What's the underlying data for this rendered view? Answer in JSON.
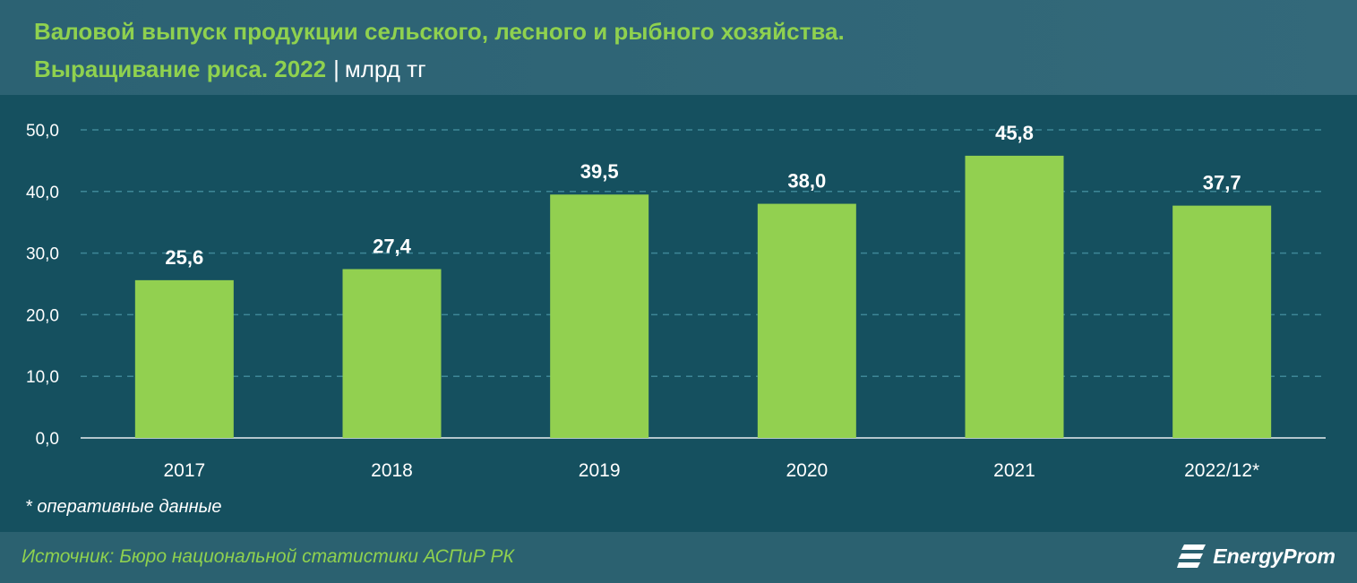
{
  "header": {
    "title_line1": "Валовой выпуск продукции сельского, лесного и рыбного хозяйства.",
    "title_line2": "Выращивание риса. 2022",
    "separator": "|",
    "unit": "млрд тг"
  },
  "chart_data": {
    "type": "bar",
    "title": "Валовой выпуск продукции сельского, лесного и рыбного хозяйства. Выращивание риса. 2022",
    "ylabel": "млрд тг",
    "xlabel": "",
    "categories": [
      "2017",
      "2018",
      "2019",
      "2020",
      "2021",
      "2022/12*"
    ],
    "values": [
      25.6,
      27.4,
      39.5,
      38.0,
      45.8,
      37.7
    ],
    "data_labels": [
      "25,6",
      "27,4",
      "39,5",
      "38,0",
      "45,8",
      "37,7"
    ],
    "yticks": [
      0,
      10,
      20,
      30,
      40,
      50
    ],
    "ytick_labels": [
      "0,0",
      "10,0",
      "20,0",
      "30,0",
      "40,0",
      "50,0"
    ],
    "ylim": [
      0,
      50
    ],
    "grid": true,
    "legend": "none"
  },
  "footnote": "* оперативные данные",
  "footer": {
    "source": "Источник: Бюро национальной статистики АСПиР РК",
    "logo_text": "EnergyProm"
  },
  "colors": {
    "bar": "#92d050",
    "background": "#15505f",
    "header_bg": "#2f6576",
    "title": "#8fd14f",
    "text": "#ffffff",
    "grid": "#3e8797"
  },
  "icons": {
    "logo": "energyprom-logo-icon"
  }
}
